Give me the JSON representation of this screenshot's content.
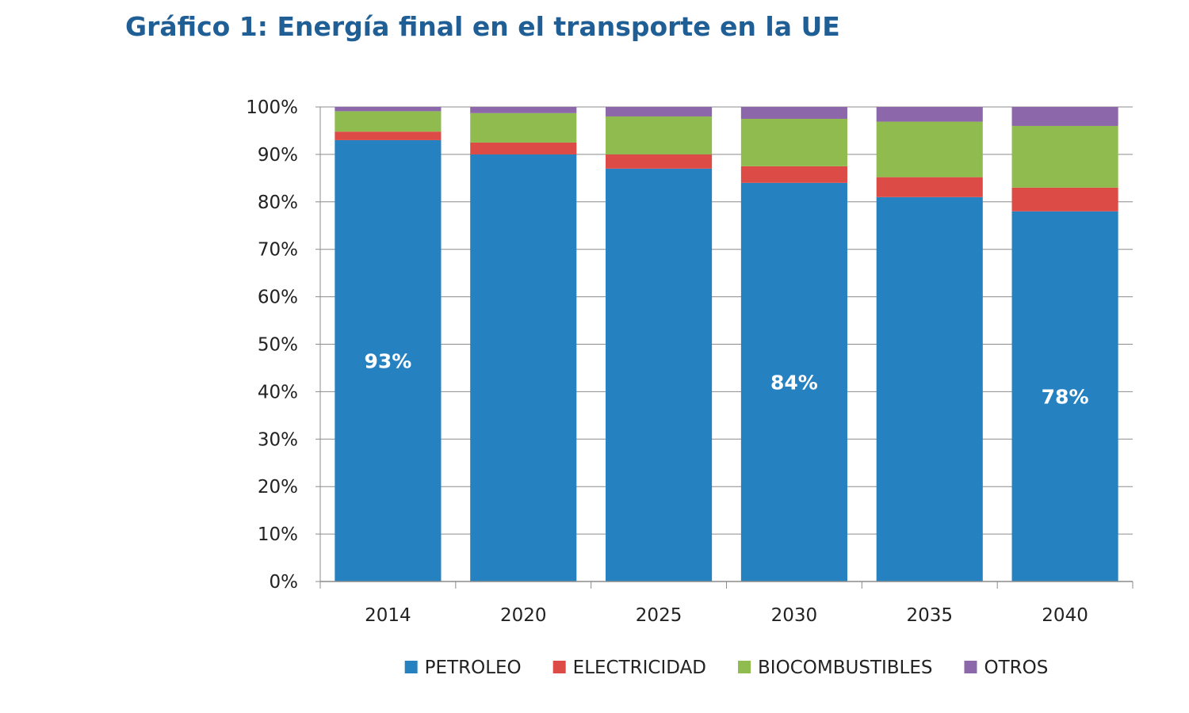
{
  "title": "Gráfico 1: Energía final en el transporte en la UE",
  "chart_data": {
    "type": "bar",
    "stacked": true,
    "categories": [
      "2014",
      "2020",
      "2025",
      "2030",
      "2035",
      "2040"
    ],
    "series": [
      {
        "name": "PETROLEO",
        "color": "#2681c1",
        "values": [
          93,
          90,
          87,
          84,
          81,
          78
        ]
      },
      {
        "name": "ELECTRICIDAD",
        "color": "#dd4b47",
        "values": [
          1.8,
          2.5,
          3,
          3.5,
          4.2,
          5
        ]
      },
      {
        "name": "BIOCOMBUSTIBLES",
        "color": "#8fbb4f",
        "values": [
          4.3,
          6.2,
          8,
          10,
          11.7,
          13
        ]
      },
      {
        "name": "OTROS",
        "color": "#8c67aa",
        "values": [
          0.9,
          1.3,
          2,
          2.5,
          3.1,
          4
        ]
      }
    ],
    "data_labels": [
      {
        "category": "2014",
        "text": "93%"
      },
      {
        "category": "2030",
        "text": "84%"
      },
      {
        "category": "2040",
        "text": "78%"
      }
    ],
    "ylim": [
      0,
      100
    ],
    "yticks": [
      "0%",
      "10%",
      "20%",
      "30%",
      "40%",
      "50%",
      "60%",
      "70%",
      "80%",
      "90%",
      "100%"
    ],
    "grid": true,
    "legend_position": "bottom"
  }
}
